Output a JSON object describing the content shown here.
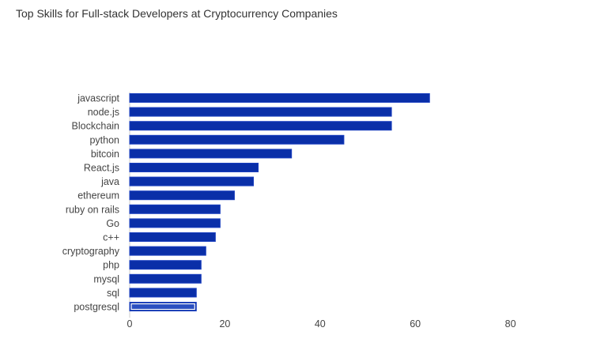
{
  "chart_data": {
    "type": "bar",
    "orientation": "horizontal",
    "title": "Top Skills for Full-stack Developers at Cryptocurrency Companies",
    "categories": [
      "javascript",
      "node.js",
      "Blockchain",
      "python",
      "bitcoin",
      "React.js",
      "java",
      "ethereum",
      "ruby on rails",
      "Go",
      "c++",
      "cryptography",
      "php",
      "mysql",
      "sql",
      "postgresql"
    ],
    "values": [
      63,
      55,
      55,
      45,
      34,
      27,
      26,
      22,
      19,
      19,
      18,
      16,
      15,
      15,
      14,
      14
    ],
    "xlim": [
      0,
      90
    ],
    "xticks": [
      0,
      20,
      40,
      60,
      80
    ],
    "xlabel": "",
    "ylabel": "",
    "grid": false,
    "highlighted_category": "postgresql",
    "colors": {
      "bar": "#0a2fa8",
      "bar_edge": "#1a3fbf",
      "highlight_inner": "#ffffff"
    }
  }
}
